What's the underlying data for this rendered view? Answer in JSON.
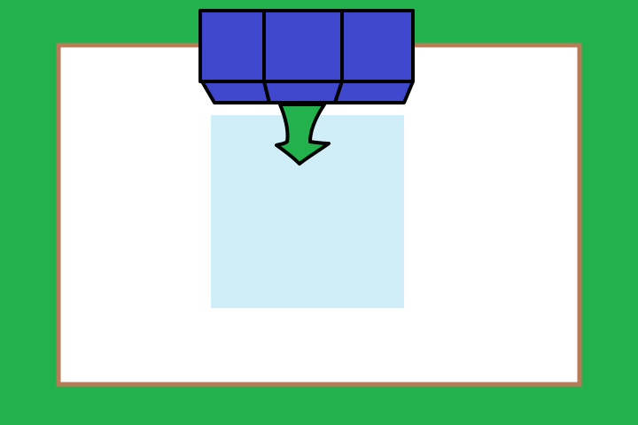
{
  "scene": {
    "description_visible_text": "",
    "colors": {
      "table_felt": "#23b14d",
      "board_border": "#b97a57",
      "board_surface": "#ffffff",
      "drop_target": "#d0eef8",
      "piece_fill": "#3f48cc",
      "piece_outline": "#000000",
      "arrow_fill": "#23b14d"
    },
    "piece": {
      "name": "block-piece",
      "segment_count": 3
    },
    "arrow": {
      "direction": "down"
    },
    "icons": [
      "block-piece-icon",
      "down-arrow-icon"
    ]
  }
}
